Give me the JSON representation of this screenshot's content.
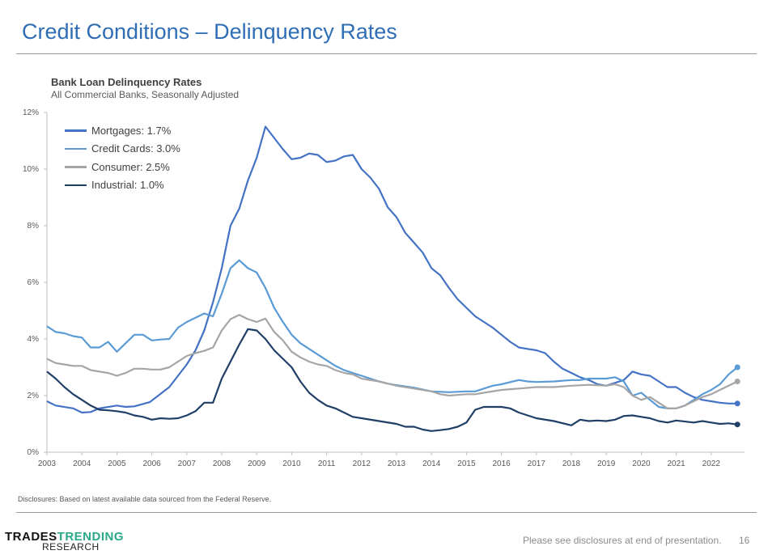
{
  "header": {
    "title": "Credit Conditions – Delinquency Rates"
  },
  "footer": {
    "disclosure": "Disclosures: Based on latest available data sourced from the Federal Reserve.",
    "note": "Please see disclosures at end of presentation.",
    "page_number": "16",
    "logo_line1_a": "TRADES",
    "logo_line1_b": "TRENDING",
    "logo_line2": "RESEARCH"
  },
  "chart_data": {
    "type": "line",
    "title": "Bank Loan Delinquency Rates",
    "subtitle": "All Commercial Banks, Seasonally Adjusted",
    "xlabel": "",
    "ylabel": "",
    "xlim": [
      2003,
      2022.95
    ],
    "ylim": [
      0,
      12
    ],
    "y_ticks": [
      "0%",
      "2%",
      "4%",
      "6%",
      "8%",
      "10%",
      "12%"
    ],
    "x_ticks": [
      "2003",
      "2004",
      "2005",
      "2006",
      "2007",
      "2008",
      "2009",
      "2010",
      "2011",
      "2012",
      "2013",
      "2014",
      "2015",
      "2016",
      "2017",
      "2018",
      "2019",
      "2020",
      "2021",
      "2022"
    ],
    "legend_position": "top-left",
    "series": [
      {
        "name": "Mortgages: 1.7%",
        "color": "#4472c4",
        "points": [
          [
            2003,
            1.8
          ],
          [
            2003.25,
            1.65
          ],
          [
            2003.75,
            1.55
          ],
          [
            2004,
            1.4
          ],
          [
            2004.25,
            1.42
          ],
          [
            2004.5,
            1.55
          ],
          [
            2005,
            1.65
          ],
          [
            2005.25,
            1.6
          ],
          [
            2005.5,
            1.62
          ],
          [
            2005.94,
            1.77
          ],
          [
            2006.5,
            2.3
          ],
          [
            2007,
            3.1
          ],
          [
            2007.25,
            3.6
          ],
          [
            2007.5,
            4.3
          ],
          [
            2007.75,
            5.3
          ],
          [
            2008,
            6.5
          ],
          [
            2008.25,
            8.0
          ],
          [
            2008.5,
            8.6
          ],
          [
            2008.75,
            9.6
          ],
          [
            2009,
            10.4
          ],
          [
            2009.25,
            11.5
          ],
          [
            2009.5,
            11.1
          ],
          [
            2009.75,
            10.7
          ],
          [
            2010,
            10.35
          ],
          [
            2010.25,
            10.4
          ],
          [
            2010.5,
            10.55
          ],
          [
            2010.75,
            10.5
          ],
          [
            2011,
            10.25
          ],
          [
            2011.25,
            10.3
          ],
          [
            2011.5,
            10.45
          ],
          [
            2011.75,
            10.5
          ],
          [
            2012,
            10.0
          ],
          [
            2012.25,
            9.7
          ],
          [
            2012.5,
            9.3
          ],
          [
            2012.75,
            8.65
          ],
          [
            2013,
            8.3
          ],
          [
            2013.25,
            7.75
          ],
          [
            2013.5,
            7.4
          ],
          [
            2013.75,
            7.05
          ],
          [
            2014,
            6.5
          ],
          [
            2014.25,
            6.25
          ],
          [
            2014.5,
            5.8
          ],
          [
            2014.75,
            5.4
          ],
          [
            2015,
            5.1
          ],
          [
            2015.25,
            4.8
          ],
          [
            2015.5,
            4.6
          ],
          [
            2015.75,
            4.4
          ],
          [
            2016,
            4.15
          ],
          [
            2016.25,
            3.9
          ],
          [
            2016.5,
            3.7
          ],
          [
            2016.75,
            3.65
          ],
          [
            2017,
            3.6
          ],
          [
            2017.25,
            3.5
          ],
          [
            2017.5,
            3.2
          ],
          [
            2017.75,
            2.95
          ],
          [
            2018,
            2.8
          ],
          [
            2018.25,
            2.65
          ],
          [
            2018.5,
            2.55
          ],
          [
            2018.75,
            2.4
          ],
          [
            2019,
            2.35
          ],
          [
            2019.25,
            2.45
          ],
          [
            2019.5,
            2.55
          ],
          [
            2019.75,
            2.85
          ],
          [
            2020,
            2.75
          ],
          [
            2020.25,
            2.7
          ],
          [
            2020.5,
            2.5
          ],
          [
            2020.75,
            2.3
          ],
          [
            2021,
            2.3
          ],
          [
            2021.25,
            2.1
          ],
          [
            2021.5,
            1.95
          ],
          [
            2021.75,
            1.85
          ],
          [
            2022,
            1.8
          ],
          [
            2022.25,
            1.75
          ],
          [
            2022.5,
            1.72
          ],
          [
            2022.75,
            1.72
          ]
        ]
      },
      {
        "name": "Credit Cards: 3.0%",
        "color": "#5b9bd5",
        "points": [
          [
            2003,
            4.45
          ],
          [
            2003.25,
            4.25
          ],
          [
            2003.5,
            4.2
          ],
          [
            2003.75,
            4.1
          ],
          [
            2004,
            4.05
          ],
          [
            2004.25,
            3.7
          ],
          [
            2004.5,
            3.7
          ],
          [
            2004.75,
            3.9
          ],
          [
            2005,
            3.55
          ],
          [
            2005.25,
            3.85
          ],
          [
            2005.5,
            4.15
          ],
          [
            2005.75,
            4.15
          ],
          [
            2006,
            3.95
          ],
          [
            2006.25,
            3.98
          ],
          [
            2006.5,
            4.0
          ],
          [
            2006.75,
            4.4
          ],
          [
            2007,
            4.6
          ],
          [
            2007.25,
            4.75
          ],
          [
            2007.5,
            4.9
          ],
          [
            2007.75,
            4.8
          ],
          [
            2008,
            5.6
          ],
          [
            2008.25,
            6.5
          ],
          [
            2008.5,
            6.78
          ],
          [
            2008.75,
            6.5
          ],
          [
            2009,
            6.35
          ],
          [
            2009.25,
            5.8
          ],
          [
            2009.5,
            5.1
          ],
          [
            2009.75,
            4.6
          ],
          [
            2010,
            4.15
          ],
          [
            2010.25,
            3.85
          ],
          [
            2010.5,
            3.65
          ],
          [
            2010.75,
            3.45
          ],
          [
            2011,
            3.25
          ],
          [
            2011.25,
            3.05
          ],
          [
            2011.5,
            2.9
          ],
          [
            2011.75,
            2.8
          ],
          [
            2012,
            2.7
          ],
          [
            2012.25,
            2.6
          ],
          [
            2012.5,
            2.5
          ],
          [
            2012.75,
            2.42
          ],
          [
            2013,
            2.37
          ],
          [
            2013.5,
            2.28
          ],
          [
            2014,
            2.15
          ],
          [
            2014.5,
            2.12
          ],
          [
            2015,
            2.15
          ],
          [
            2015.25,
            2.15
          ],
          [
            2015.5,
            2.25
          ],
          [
            2015.75,
            2.35
          ],
          [
            2016,
            2.4
          ],
          [
            2016.5,
            2.55
          ],
          [
            2016.75,
            2.5
          ],
          [
            2017,
            2.48
          ],
          [
            2017.5,
            2.5
          ],
          [
            2018,
            2.55
          ],
          [
            2018.25,
            2.55
          ],
          [
            2018.5,
            2.6
          ],
          [
            2019,
            2.6
          ],
          [
            2019.25,
            2.65
          ],
          [
            2019.5,
            2.5
          ],
          [
            2019.75,
            2.0
          ],
          [
            2020,
            2.1
          ],
          [
            2020.25,
            1.85
          ],
          [
            2020.5,
            1.6
          ],
          [
            2020.75,
            1.55
          ],
          [
            2021,
            1.55
          ],
          [
            2021.25,
            1.65
          ],
          [
            2021.5,
            1.85
          ],
          [
            2021.75,
            2.05
          ],
          [
            2022,
            2.2
          ],
          [
            2022.25,
            2.4
          ],
          [
            2022.5,
            2.75
          ],
          [
            2022.75,
            3.0
          ]
        ]
      },
      {
        "name": "Consumer: 2.5%",
        "color": "#a5a5a5",
        "points": [
          [
            2003,
            3.3
          ],
          [
            2003.25,
            3.15
          ],
          [
            2003.5,
            3.1
          ],
          [
            2003.75,
            3.05
          ],
          [
            2004,
            3.05
          ],
          [
            2004.25,
            2.9
          ],
          [
            2004.5,
            2.85
          ],
          [
            2004.75,
            2.8
          ],
          [
            2005,
            2.7
          ],
          [
            2005.25,
            2.8
          ],
          [
            2005.5,
            2.95
          ],
          [
            2005.75,
            2.95
          ],
          [
            2006,
            2.92
          ],
          [
            2006.25,
            2.92
          ],
          [
            2006.5,
            3.0
          ],
          [
            2006.75,
            3.2
          ],
          [
            2007,
            3.4
          ],
          [
            2007.25,
            3.5
          ],
          [
            2007.5,
            3.58
          ],
          [
            2007.75,
            3.7
          ],
          [
            2008,
            4.3
          ],
          [
            2008.25,
            4.7
          ],
          [
            2008.5,
            4.85
          ],
          [
            2008.75,
            4.7
          ],
          [
            2009,
            4.6
          ],
          [
            2009.25,
            4.72
          ],
          [
            2009.5,
            4.25
          ],
          [
            2009.75,
            3.95
          ],
          [
            2010,
            3.55
          ],
          [
            2010.25,
            3.35
          ],
          [
            2010.5,
            3.2
          ],
          [
            2010.75,
            3.1
          ],
          [
            2011,
            3.05
          ],
          [
            2011.25,
            2.9
          ],
          [
            2011.5,
            2.8
          ],
          [
            2011.75,
            2.75
          ],
          [
            2012,
            2.6
          ],
          [
            2012.5,
            2.5
          ],
          [
            2013,
            2.35
          ],
          [
            2013.5,
            2.25
          ],
          [
            2014,
            2.15
          ],
          [
            2014.25,
            2.05
          ],
          [
            2014.5,
            2.0
          ],
          [
            2015,
            2.05
          ],
          [
            2015.25,
            2.05
          ],
          [
            2015.5,
            2.1
          ],
          [
            2016,
            2.2
          ],
          [
            2016.5,
            2.25
          ],
          [
            2017,
            2.3
          ],
          [
            2017.5,
            2.3
          ],
          [
            2018,
            2.35
          ],
          [
            2018.5,
            2.38
          ],
          [
            2019,
            2.35
          ],
          [
            2019.25,
            2.4
          ],
          [
            2019.5,
            2.3
          ],
          [
            2019.75,
            2.0
          ],
          [
            2020,
            1.85
          ],
          [
            2020.25,
            1.95
          ],
          [
            2020.5,
            1.75
          ],
          [
            2020.75,
            1.55
          ],
          [
            2021,
            1.55
          ],
          [
            2021.25,
            1.65
          ],
          [
            2021.5,
            1.8
          ],
          [
            2021.75,
            1.95
          ],
          [
            2022,
            2.05
          ],
          [
            2022.25,
            2.2
          ],
          [
            2022.5,
            2.35
          ],
          [
            2022.75,
            2.5
          ]
        ]
      },
      {
        "name": "Industrial: 1.0%",
        "color": "#1f3f66",
        "points": [
          [
            2003,
            2.85
          ],
          [
            2003.25,
            2.6
          ],
          [
            2003.5,
            2.3
          ],
          [
            2003.75,
            2.05
          ],
          [
            2004,
            1.85
          ],
          [
            2004.25,
            1.65
          ],
          [
            2004.5,
            1.5
          ],
          [
            2004.75,
            1.48
          ],
          [
            2005,
            1.45
          ],
          [
            2005.25,
            1.4
          ],
          [
            2005.5,
            1.3
          ],
          [
            2005.75,
            1.25
          ],
          [
            2006,
            1.15
          ],
          [
            2006.25,
            1.2
          ],
          [
            2006.5,
            1.18
          ],
          [
            2006.75,
            1.2
          ],
          [
            2007,
            1.3
          ],
          [
            2007.25,
            1.45
          ],
          [
            2007.5,
            1.75
          ],
          [
            2007.75,
            1.75
          ],
          [
            2008,
            2.6
          ],
          [
            2008.25,
            3.2
          ],
          [
            2008.5,
            3.8
          ],
          [
            2008.75,
            4.35
          ],
          [
            2009,
            4.3
          ],
          [
            2009.25,
            4.0
          ],
          [
            2009.5,
            3.6
          ],
          [
            2009.75,
            3.3
          ],
          [
            2010,
            3.0
          ],
          [
            2010.25,
            2.5
          ],
          [
            2010.5,
            2.1
          ],
          [
            2010.75,
            1.85
          ],
          [
            2011,
            1.65
          ],
          [
            2011.25,
            1.55
          ],
          [
            2011.5,
            1.4
          ],
          [
            2011.75,
            1.25
          ],
          [
            2012,
            1.2
          ],
          [
            2012.5,
            1.1
          ],
          [
            2013,
            1.0
          ],
          [
            2013.25,
            0.9
          ],
          [
            2013.5,
            0.9
          ],
          [
            2013.75,
            0.8
          ],
          [
            2014,
            0.75
          ],
          [
            2014.25,
            0.78
          ],
          [
            2014.5,
            0.82
          ],
          [
            2014.75,
            0.9
          ],
          [
            2015,
            1.05
          ],
          [
            2015.25,
            1.5
          ],
          [
            2015.5,
            1.6
          ],
          [
            2016,
            1.6
          ],
          [
            2016.25,
            1.55
          ],
          [
            2016.5,
            1.4
          ],
          [
            2016.75,
            1.3
          ],
          [
            2017,
            1.2
          ],
          [
            2017.5,
            1.1
          ],
          [
            2018,
            0.95
          ],
          [
            2018.25,
            1.15
          ],
          [
            2018.5,
            1.1
          ],
          [
            2018.75,
            1.12
          ],
          [
            2019,
            1.1
          ],
          [
            2019.25,
            1.15
          ],
          [
            2019.5,
            1.28
          ],
          [
            2019.75,
            1.3
          ],
          [
            2020,
            1.25
          ],
          [
            2020.25,
            1.2
          ],
          [
            2020.5,
            1.1
          ],
          [
            2020.75,
            1.05
          ],
          [
            2021,
            1.12
          ],
          [
            2021.5,
            1.05
          ],
          [
            2021.75,
            1.1
          ],
          [
            2022,
            1.05
          ],
          [
            2022.25,
            1.0
          ],
          [
            2022.5,
            1.02
          ],
          [
            2022.75,
            0.98
          ]
        ]
      }
    ]
  }
}
